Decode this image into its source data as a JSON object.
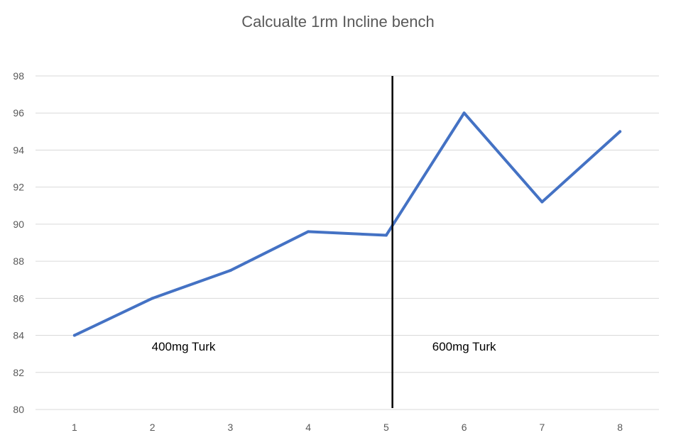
{
  "chart_data": {
    "type": "line",
    "title": "Calcualte 1rm Incline bench",
    "xlabel": "",
    "ylabel": "",
    "x": [
      1,
      2,
      3,
      4,
      5,
      6,
      7,
      8
    ],
    "series": [
      {
        "values": [
          84.0,
          86.0,
          87.5,
          89.6,
          89.4,
          96.0,
          91.2,
          95.0
        ]
      }
    ],
    "ylim": [
      80,
      98
    ],
    "yticks": [
      80,
      82,
      84,
      86,
      88,
      90,
      92,
      94,
      96,
      98
    ],
    "grid": true,
    "legend": "none",
    "annotations": [
      {
        "text": "400mg Turk",
        "x": 2.4,
        "y": 83.4
      },
      {
        "text": "600mg Turk",
        "x": 6.0,
        "y": 83.4
      }
    ],
    "divider": {
      "x": 5.08
    },
    "colors": {
      "series": "#4472C4",
      "grid": "#D9D9D9",
      "text": "#595959",
      "divider": "#000000"
    }
  }
}
